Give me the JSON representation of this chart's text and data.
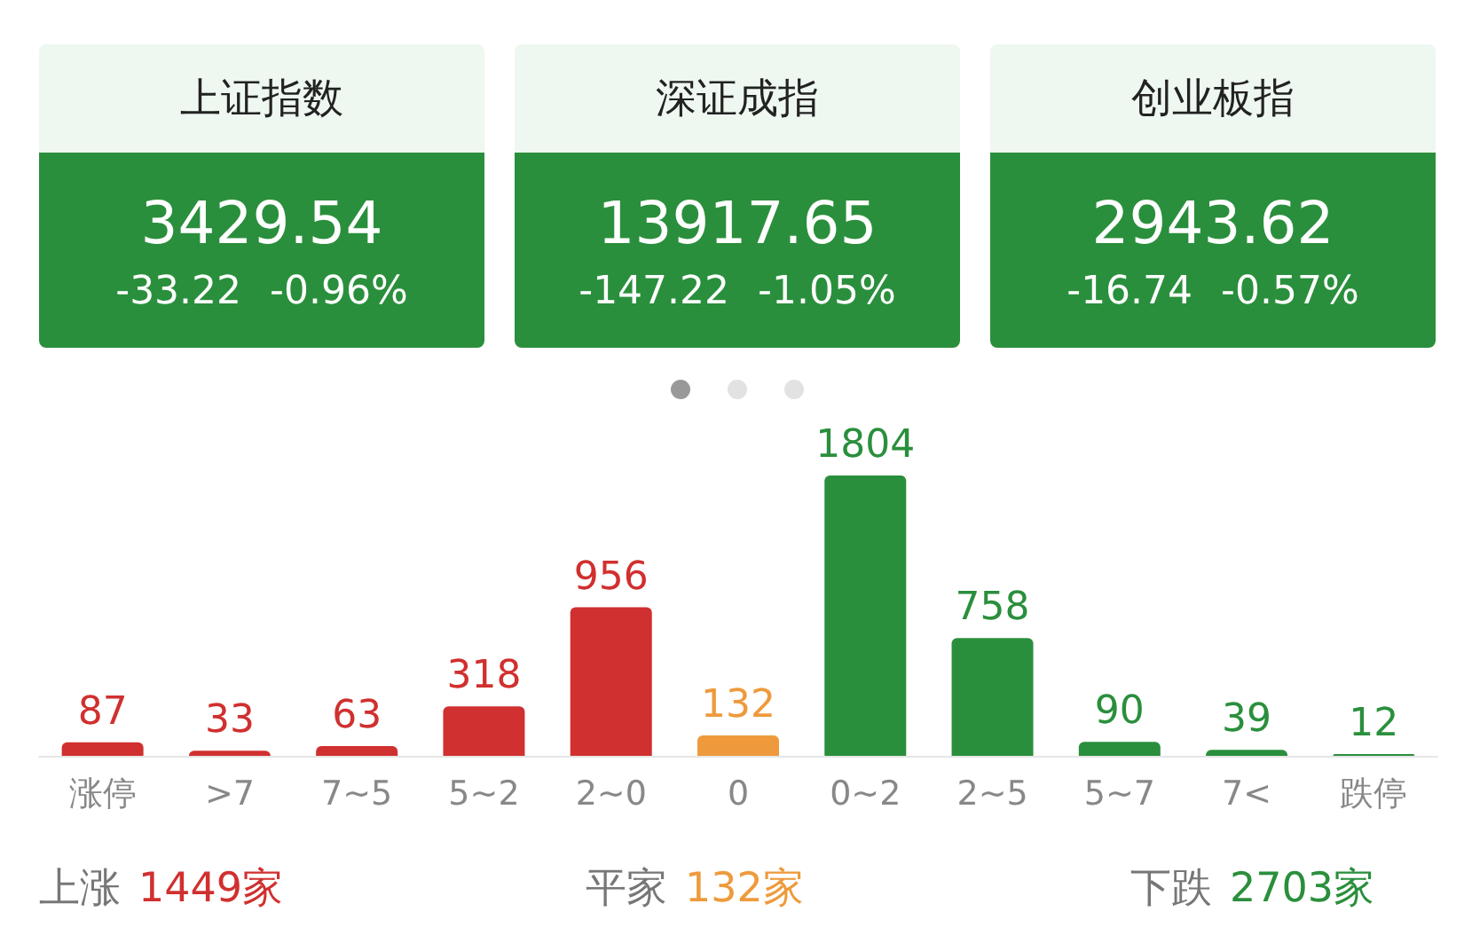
{
  "chart_data": [
    {
      "type": "other",
      "title": "上证指数",
      "color": "#2a8f3c",
      "annotations": [
        "3429.54",
        "-33.22",
        "-0.96%"
      ]
    },
    {
      "type": "other",
      "title": "深证成指",
      "color": "#2a8f3c",
      "annotations": [
        "13917.65",
        "-147.22",
        "-1.05%"
      ]
    },
    {
      "type": "other",
      "title": "创业板指",
      "color": "#2a8f3c",
      "annotations": [
        "2943.62",
        "-16.74",
        "-0.57%"
      ]
    },
    {
      "type": "bar",
      "categories": [
        "涨停",
        ">7",
        "7~5",
        "5~2",
        "2~0",
        "0",
        "0~2",
        "2~5",
        "5~7",
        "7<",
        "跌停"
      ],
      "values": [
        87,
        33,
        63,
        318,
        956,
        132,
        1804,
        758,
        90,
        39,
        12
      ],
      "colors": [
        "#d0302f",
        "#d0302f",
        "#d0302f",
        "#d0302f",
        "#d0302f",
        "#ee9a3c",
        "#2a8f3c",
        "#2a8f3c",
        "#2a8f3c",
        "#2a8f3c",
        "#2a8f3c"
      ],
      "data_labels": true
    },
    {
      "type": "other",
      "categories": [
        "上涨",
        "平家",
        "下跌"
      ],
      "value_labels": [
        "1449家",
        "132家",
        "2703家"
      ],
      "colors": [
        "#d0302f",
        "#ee9a3c",
        "#2a8f3c"
      ]
    }
  ]
}
